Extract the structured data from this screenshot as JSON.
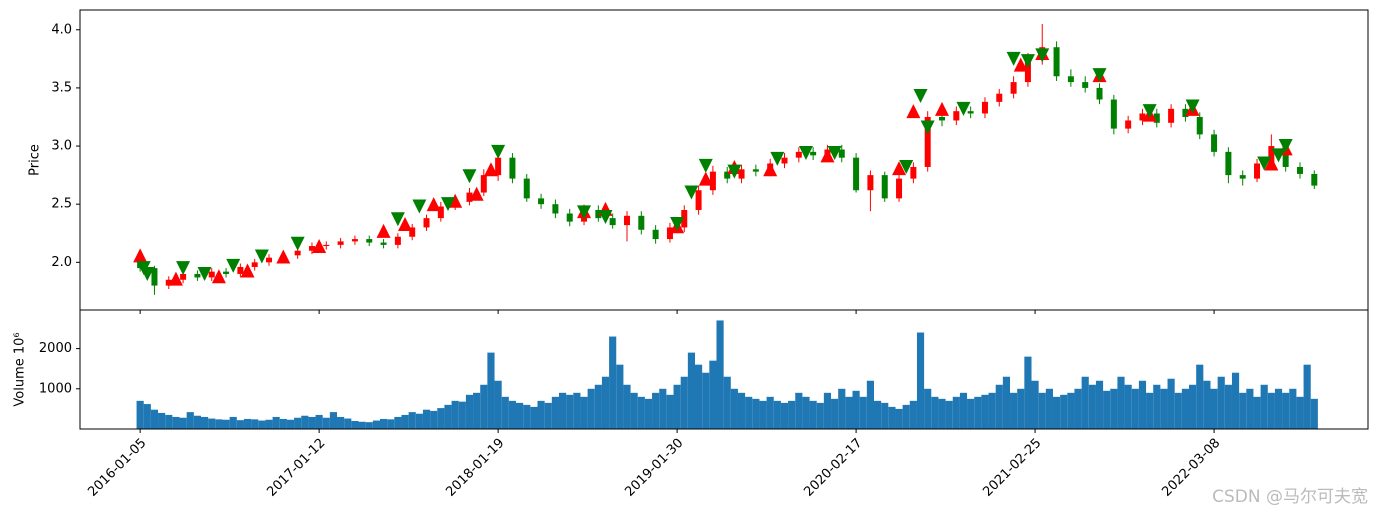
{
  "chart_data": [
    {
      "type": "candlestick",
      "ylabel": "Price",
      "up_color": "red",
      "down_color": "green",
      "xlim": [
        -84,
        1715
      ],
      "ylim": [
        1.59,
        4.17
      ],
      "yticks": [
        {
          "value": 2.0,
          "label": "2.0"
        },
        2.5,
        {
          "value": 3.0,
          "label": "3.0"
        },
        3.5,
        {
          "value": 4.0,
          "label": "4.0"
        }
      ],
      "x": [
        0,
        20,
        40,
        60,
        80,
        100,
        120,
        140,
        160,
        180,
        200,
        220,
        240,
        260,
        280,
        300,
        320,
        340,
        360,
        380,
        400,
        420,
        440,
        460,
        480,
        500,
        520,
        540,
        560,
        580,
        600,
        620,
        640,
        660,
        680,
        700,
        720,
        740,
        760,
        780,
        800,
        820,
        840,
        860,
        880,
        900,
        920,
        940,
        960,
        980,
        1000,
        1020,
        1040,
        1060,
        1080,
        1100,
        1120,
        1140,
        1160,
        1180,
        1200,
        1220,
        1240,
        1260,
        1280,
        1300,
        1320,
        1340,
        1360,
        1380,
        1400,
        1420,
        1440,
        1460,
        1480,
        1500,
        1520,
        1540,
        1560,
        1580,
        1600,
        1620,
        1640
      ],
      "open": [
        2.05,
        1.95,
        1.8,
        1.85,
        1.9,
        1.87,
        1.92,
        1.9,
        1.96,
        2.0,
        2.04,
        2.06,
        2.1,
        2.14,
        2.15,
        2.18,
        2.2,
        2.17,
        2.15,
        2.22,
        2.3,
        2.38,
        2.48,
        2.52,
        2.6,
        2.75,
        2.9,
        2.72,
        2.55,
        2.5,
        2.42,
        2.35,
        2.45,
        2.38,
        2.32,
        2.4,
        2.28,
        2.2,
        2.3,
        2.45,
        2.62,
        2.78,
        2.72,
        2.8,
        2.78,
        2.85,
        2.9,
        2.95,
        2.92,
        2.97,
        2.9,
        2.62,
        2.75,
        2.55,
        2.72,
        2.82,
        3.25,
        3.22,
        3.3,
        3.28,
        3.38,
        3.45,
        3.55,
        3.75,
        3.85,
        3.6,
        3.55,
        3.5,
        3.4,
        3.15,
        3.22,
        3.28,
        3.2,
        3.32,
        3.25,
        3.1,
        2.95,
        2.75,
        2.72,
        2.85,
        3.0,
        2.82,
        2.76
      ],
      "close": [
        1.95,
        1.8,
        1.85,
        1.9,
        1.87,
        1.92,
        1.9,
        1.96,
        2.0,
        2.04,
        2.06,
        2.1,
        2.14,
        2.15,
        2.18,
        2.2,
        2.17,
        2.15,
        2.22,
        2.3,
        2.38,
        2.48,
        2.52,
        2.6,
        2.75,
        2.9,
        2.72,
        2.55,
        2.5,
        2.42,
        2.35,
        2.45,
        2.38,
        2.32,
        2.4,
        2.28,
        2.2,
        2.3,
        2.45,
        2.62,
        2.78,
        2.72,
        2.8,
        2.78,
        2.85,
        2.9,
        2.95,
        2.92,
        2.97,
        2.9,
        2.62,
        2.75,
        2.55,
        2.72,
        2.82,
        3.25,
        3.22,
        3.3,
        3.28,
        3.38,
        3.45,
        3.55,
        3.75,
        3.85,
        3.6,
        3.55,
        3.5,
        3.4,
        3.15,
        3.22,
        3.28,
        3.2,
        3.32,
        3.25,
        3.1,
        2.95,
        2.75,
        2.72,
        2.85,
        3.0,
        2.82,
        2.76,
        2.66
      ],
      "high": [
        2.08,
        1.97,
        1.88,
        1.93,
        1.93,
        1.95,
        1.95,
        1.99,
        2.03,
        2.07,
        2.09,
        2.13,
        2.17,
        2.18,
        2.21,
        2.23,
        2.23,
        2.2,
        2.25,
        2.33,
        2.41,
        2.52,
        2.56,
        2.64,
        2.8,
        2.95,
        2.94,
        2.76,
        2.59,
        2.54,
        2.46,
        2.49,
        2.49,
        2.42,
        2.44,
        2.44,
        2.32,
        2.34,
        2.49,
        2.66,
        2.83,
        2.82,
        2.84,
        2.84,
        2.89,
        2.94,
        2.99,
        2.99,
        3.01,
        3.01,
        2.94,
        2.79,
        2.78,
        2.76,
        2.86,
        3.3,
        3.3,
        3.34,
        3.34,
        3.42,
        3.49,
        3.6,
        3.8,
        4.05,
        3.9,
        3.66,
        3.6,
        3.54,
        3.44,
        3.26,
        3.32,
        3.32,
        3.36,
        3.36,
        3.29,
        3.14,
        2.99,
        2.79,
        2.89,
        3.1,
        3.04,
        2.86,
        2.79
      ],
      "low": [
        1.92,
        1.72,
        1.77,
        1.82,
        1.84,
        1.84,
        1.87,
        1.87,
        1.93,
        1.97,
        2.01,
        2.03,
        2.07,
        2.11,
        2.12,
        2.15,
        2.14,
        2.12,
        2.12,
        2.19,
        2.27,
        2.35,
        2.45,
        2.49,
        2.57,
        2.7,
        2.68,
        2.52,
        2.46,
        2.38,
        2.31,
        2.32,
        2.35,
        2.29,
        2.18,
        2.24,
        2.16,
        2.17,
        2.26,
        2.41,
        2.58,
        2.68,
        2.68,
        2.74,
        2.74,
        2.81,
        2.86,
        2.88,
        2.88,
        2.86,
        2.6,
        2.44,
        2.52,
        2.52,
        2.68,
        2.78,
        3.17,
        3.18,
        3.24,
        3.24,
        3.34,
        3.41,
        3.51,
        3.7,
        3.56,
        3.51,
        3.46,
        3.36,
        3.1,
        3.11,
        3.18,
        3.16,
        3.16,
        3.21,
        3.06,
        2.91,
        2.68,
        2.66,
        2.69,
        2.81,
        2.78,
        2.72,
        2.63
      ],
      "buy_signals": {
        "color": "red",
        "x": [
          0,
          50,
          110,
          150,
          200,
          250,
          340,
          370,
          410,
          440,
          470,
          490,
          620,
          650,
          750,
          790,
          830,
          880,
          960,
          1060,
          1080,
          1120,
          1230,
          1260,
          1340,
          1410,
          1470,
          1580,
          1600
        ],
        "y": [
          2.06,
          1.86,
          1.88,
          1.93,
          2.05,
          2.14,
          2.27,
          2.33,
          2.5,
          2.53,
          2.59,
          2.8,
          2.44,
          2.46,
          2.31,
          2.72,
          2.82,
          2.8,
          2.92,
          2.81,
          3.3,
          3.32,
          3.7,
          3.8,
          3.61,
          3.27,
          3.32,
          2.85,
          2.98
        ]
      },
      "sell_signals": {
        "color": "green",
        "x": [
          5,
          10,
          60,
          90,
          130,
          170,
          220,
          360,
          390,
          430,
          460,
          500,
          620,
          650,
          750,
          770,
          790,
          830,
          890,
          930,
          970,
          1070,
          1090,
          1100,
          1150,
          1220,
          1240,
          1260,
          1340,
          1410,
          1470,
          1570,
          1590,
          1600
        ],
        "y": [
          1.95,
          1.9,
          1.95,
          1.9,
          1.97,
          2.05,
          2.16,
          2.37,
          2.48,
          2.5,
          2.74,
          2.95,
          2.43,
          2.39,
          2.33,
          2.6,
          2.83,
          2.78,
          2.89,
          2.94,
          2.94,
          2.82,
          3.43,
          3.16,
          3.32,
          3.75,
          3.73,
          3.78,
          3.61,
          3.3,
          3.34,
          2.85,
          2.92,
          3.0
        ]
      }
    },
    {
      "type": "bar",
      "ylabel": "Volume  10⁶",
      "color": "#1f77b4",
      "bar_width": 10,
      "xlim": [
        -84,
        1715
      ],
      "ylim": [
        0,
        2960
      ],
      "yticks": [
        1000,
        2000
      ],
      "xticks": [
        {
          "value": 0,
          "label": "2016-01-05"
        },
        {
          "value": 250,
          "label": "2017-01-12"
        },
        {
          "value": 500,
          "label": "2018-01-19"
        },
        {
          "value": 750,
          "label": "2019-01-30"
        },
        {
          "value": 1000,
          "label": "2020-02-17"
        },
        {
          "value": 1250,
          "label": "2021-02-25"
        },
        {
          "value": 1500,
          "label": "2022-03-08"
        }
      ],
      "x": [
        0,
        10,
        20,
        30,
        40,
        50,
        60,
        70,
        80,
        90,
        100,
        110,
        120,
        130,
        140,
        150,
        160,
        170,
        180,
        190,
        200,
        210,
        220,
        230,
        240,
        250,
        260,
        270,
        280,
        290,
        300,
        310,
        320,
        330,
        340,
        350,
        360,
        370,
        380,
        390,
        400,
        410,
        420,
        430,
        440,
        450,
        460,
        470,
        480,
        490,
        500,
        510,
        520,
        530,
        540,
        550,
        560,
        570,
        580,
        590,
        600,
        610,
        620,
        630,
        640,
        650,
        660,
        670,
        680,
        690,
        700,
        710,
        720,
        730,
        740,
        750,
        760,
        770,
        780,
        790,
        800,
        810,
        820,
        830,
        840,
        850,
        860,
        870,
        880,
        890,
        900,
        910,
        920,
        930,
        940,
        950,
        960,
        970,
        980,
        990,
        1000,
        1010,
        1020,
        1030,
        1040,
        1050,
        1060,
        1070,
        1080,
        1090,
        1100,
        1110,
        1120,
        1130,
        1140,
        1150,
        1160,
        1170,
        1180,
        1190,
        1200,
        1210,
        1220,
        1230,
        1240,
        1250,
        1260,
        1270,
        1280,
        1290,
        1300,
        1310,
        1320,
        1330,
        1340,
        1350,
        1360,
        1370,
        1380,
        1390,
        1400,
        1410,
        1420,
        1430,
        1440,
        1450,
        1460,
        1470,
        1480,
        1490,
        1500,
        1510,
        1520,
        1530,
        1540,
        1550,
        1560,
        1570,
        1580,
        1590,
        1600,
        1610,
        1620,
        1630,
        1640
      ],
      "values": [
        700,
        620,
        480,
        400,
        350,
        300,
        280,
        420,
        330,
        300,
        260,
        240,
        230,
        300,
        220,
        250,
        240,
        210,
        230,
        300,
        250,
        230,
        280,
        330,
        300,
        350,
        280,
        420,
        300,
        260,
        200,
        180,
        170,
        210,
        250,
        240,
        300,
        350,
        420,
        380,
        480,
        450,
        520,
        600,
        700,
        680,
        850,
        900,
        1100,
        1900,
        1200,
        800,
        700,
        650,
        600,
        550,
        700,
        650,
        800,
        900,
        850,
        900,
        800,
        1000,
        1100,
        1300,
        2300,
        1600,
        1100,
        900,
        800,
        750,
        900,
        1000,
        850,
        1100,
        1300,
        1900,
        1600,
        1400,
        1700,
        2700,
        1300,
        1000,
        900,
        800,
        750,
        700,
        800,
        700,
        650,
        700,
        900,
        800,
        700,
        650,
        900,
        750,
        1000,
        800,
        950,
        800,
        1200,
        700,
        650,
        550,
        500,
        600,
        700,
        2400,
        1000,
        800,
        750,
        700,
        800,
        900,
        750,
        800,
        850,
        900,
        1100,
        1300,
        900,
        1000,
        1800,
        1200,
        900,
        1000,
        800,
        850,
        900,
        1000,
        1300,
        1100,
        1200,
        950,
        1000,
        1300,
        1100,
        1000,
        1200,
        900,
        1100,
        1000,
        1250,
        900,
        1000,
        1100,
        1600,
        1200,
        1000,
        1300,
        1100,
        1400,
        900,
        1000,
        800,
        1100,
        900,
        1000,
        900,
        1000,
        800,
        1600,
        750
      ]
    }
  ],
  "watermark": "CSDN @马尔可夫宽"
}
